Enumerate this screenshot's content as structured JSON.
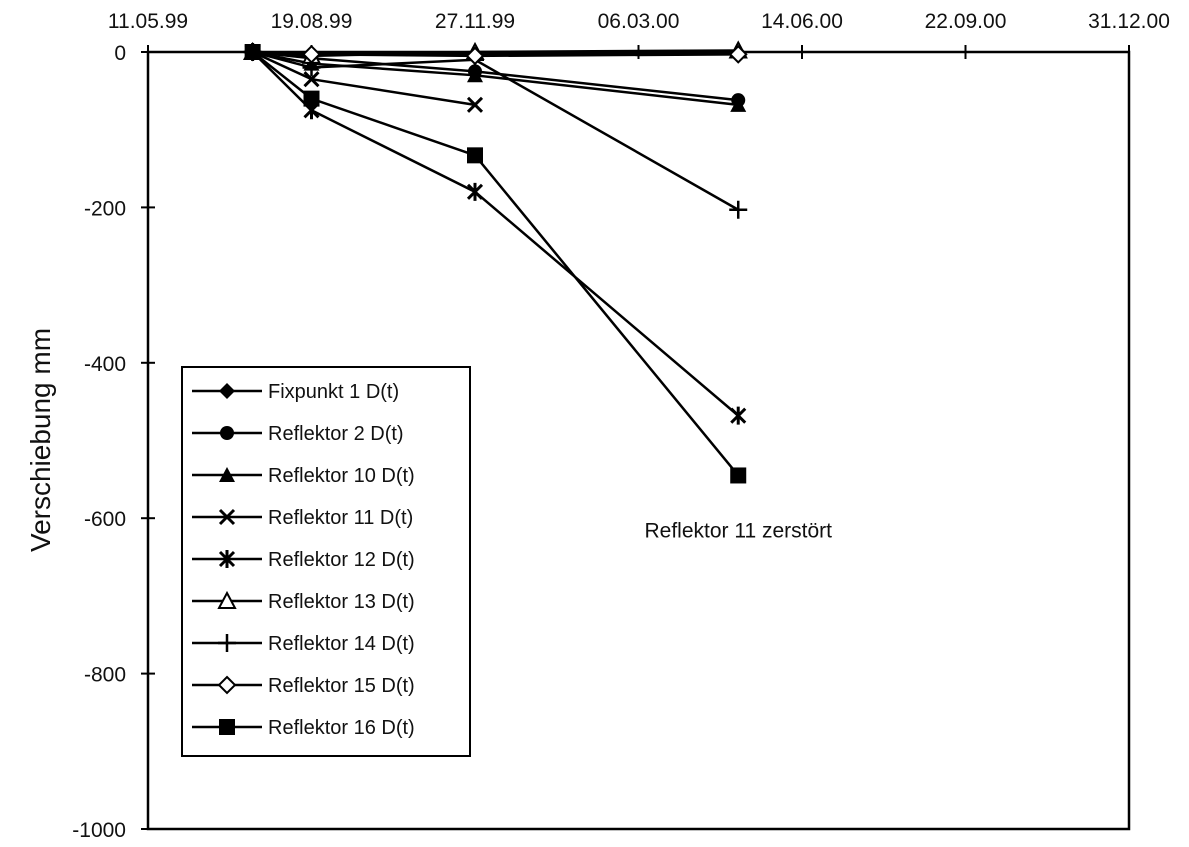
{
  "chart_data": {
    "type": "line",
    "title": "",
    "xlabel": "",
    "ylabel": "Verschiebung mm",
    "x_axis": {
      "type": "date",
      "position": "top",
      "range": [
        "11.05.99",
        "31.12.00"
      ],
      "ticks": [
        "11.05.99",
        "19.08.99",
        "27.11.99",
        "06.03.00",
        "14.06.00",
        "22.09.00",
        "31.12.00"
      ]
    },
    "y_axis": {
      "range": [
        -1000,
        0
      ],
      "ticks": [
        0,
        -200,
        -400,
        -600,
        -800,
        -1000
      ]
    },
    "grid": false,
    "legend": "left",
    "dates": [
      "14.07.99",
      "19.08.99",
      "27.11.99",
      "06.05.00"
    ],
    "series": [
      {
        "name": "Fixpunkt 1 D(t)",
        "marker": "diamond",
        "values": [
          0,
          -2,
          -3,
          -1
        ]
      },
      {
        "name": "Reflektor 2 D(t)",
        "marker": "circle",
        "values": [
          0,
          -8,
          -25,
          -62
        ]
      },
      {
        "name": "Reflektor 10 D(t)",
        "marker": "triangle",
        "values": [
          0,
          -15,
          -30,
          -68
        ]
      },
      {
        "name": "Reflektor 11 D(t)",
        "marker": "x",
        "values": [
          0,
          -35,
          -68,
          null
        ]
      },
      {
        "name": "Reflektor 12 D(t)",
        "marker": "asterisk",
        "values": [
          0,
          -75,
          -180,
          -468
        ]
      },
      {
        "name": "Reflektor 13 D(t)",
        "marker": "triangle-open",
        "values": [
          0,
          -5,
          0,
          2
        ]
      },
      {
        "name": "Reflektor 14 D(t)",
        "marker": "plus",
        "values": [
          0,
          -20,
          -10,
          -203
        ]
      },
      {
        "name": "Reflektor 15 D(t)",
        "marker": "diamond-open",
        "values": [
          0,
          -3,
          -5,
          -3
        ]
      },
      {
        "name": "Reflektor 16 D(t)",
        "marker": "square",
        "values": [
          0,
          -60,
          -133,
          -545
        ]
      }
    ],
    "annotations": [
      {
        "text": "Reflektor 11 zerstört",
        "date": "06.05.00",
        "y": -625
      }
    ]
  }
}
